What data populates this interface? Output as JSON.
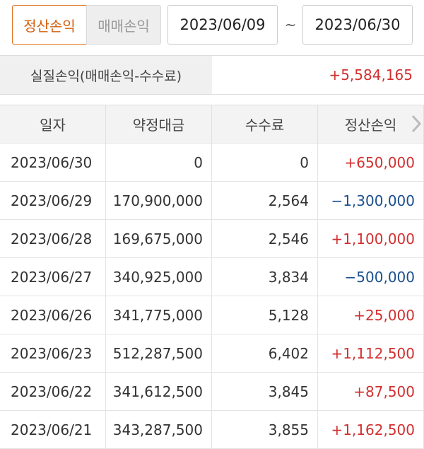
{
  "tabs": [
    "정산손익",
    "매매손익"
  ],
  "date_range": {
    "from": "2023/06/09",
    "separator": "~",
    "to": "2023/06/30"
  },
  "summary": {
    "label": "실질손익(매매손익-수수료)",
    "value": "+5,584,165"
  },
  "table": {
    "headers": [
      "일자",
      "약정대금",
      "수수료",
      "정산손익"
    ],
    "rows": [
      [
        "2023/06/30",
        "0",
        "0",
        "+650,000"
      ],
      [
        "2023/06/29",
        "170,900,000",
        "2,564",
        "−1,300,000"
      ],
      [
        "2023/06/28",
        "169,675,000",
        "2,546",
        "+1,100,000"
      ],
      [
        "2023/06/27",
        "340,925,000",
        "3,834",
        "−500,000"
      ],
      [
        "2023/06/26",
        "341,775,000",
        "5,128",
        "+25,000"
      ],
      [
        "2023/06/23",
        "512,287,500",
        "6,402",
        "+1,112,500"
      ],
      [
        "2023/06/22",
        "341,612,500",
        "3,845",
        "+87,500"
      ],
      [
        "2023/06/21",
        "343,287,500",
        "3,855",
        "+1,162,500"
      ]
    ]
  }
}
